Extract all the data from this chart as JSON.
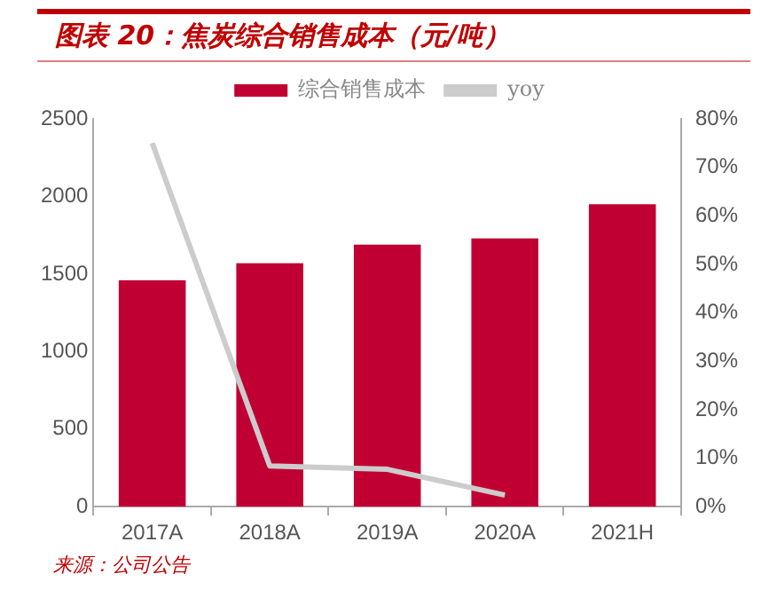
{
  "chart_data": {
    "type": "bar",
    "title": "图表 20：焦炭综合销售成本（元/吨）",
    "categories": [
      "2017A",
      "2018A",
      "2019A",
      "2020A",
      "2021H"
    ],
    "series": [
      {
        "name": "综合销售成本",
        "color": "#c00032",
        "values": [
          1460,
          1570,
          1690,
          1730,
          1950
        ]
      },
      {
        "name": "yoy",
        "type": "line",
        "axis": "y2",
        "color": "#cccccc",
        "values": [
          75,
          8.4,
          7.7,
          2.4,
          null
        ]
      }
    ],
    "ylim": [
      0,
      2500
    ],
    "yticks": [
      0,
      500,
      1000,
      1500,
      2000,
      2500
    ],
    "y2lim": [
      0,
      80
    ],
    "y2ticks": [
      {
        "value": 0,
        "label": "0%"
      },
      {
        "value": 10,
        "label": "10%"
      },
      {
        "value": 20,
        "label": "20%"
      },
      {
        "value": 30,
        "label": "30%"
      },
      {
        "value": 40,
        "label": "40%"
      },
      {
        "value": 50,
        "label": "50%"
      },
      {
        "value": 60,
        "label": "60%"
      },
      {
        "value": 70,
        "label": "70%"
      },
      {
        "value": 80,
        "label": "80%"
      }
    ],
    "grid": false,
    "legend": "top",
    "marker": "none",
    "annotations": [
      "来源：公司公告"
    ]
  }
}
